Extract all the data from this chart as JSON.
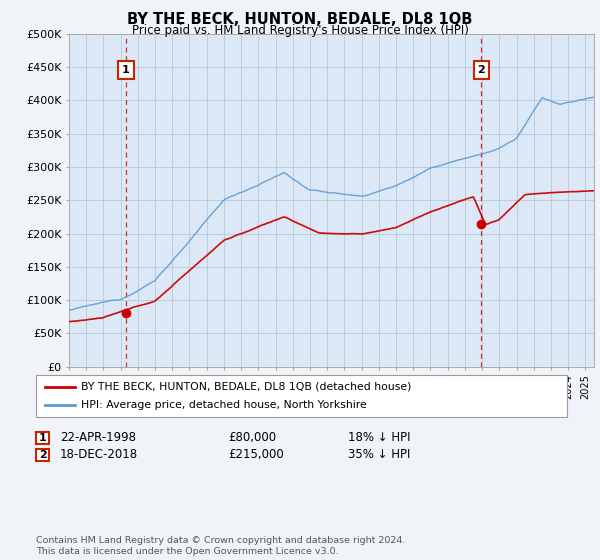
{
  "title": "BY THE BECK, HUNTON, BEDALE, DL8 1QB",
  "subtitle": "Price paid vs. HM Land Registry's House Price Index (HPI)",
  "ylabel_ticks": [
    "£0",
    "£50K",
    "£100K",
    "£150K",
    "£200K",
    "£250K",
    "£300K",
    "£350K",
    "£400K",
    "£450K",
    "£500K"
  ],
  "ytick_values": [
    0,
    50000,
    100000,
    150000,
    200000,
    250000,
    300000,
    350000,
    400000,
    450000,
    500000
  ],
  "ylim": [
    0,
    500000
  ],
  "xlim_start": 1995.0,
  "xlim_end": 2025.5,
  "hpi_color": "#5b9bd5",
  "price_color": "#cc0000",
  "marker1_date": 1998.31,
  "marker1_value": 80000,
  "marker2_date": 2018.96,
  "marker2_value": 215000,
  "vline_color": "#cc0000",
  "legend_label1": "BY THE BECK, HUNTON, BEDALE, DL8 1QB (detached house)",
  "legend_label2": "HPI: Average price, detached house, North Yorkshire",
  "annotation1_num": "1",
  "annotation1_date": "22-APR-1998",
  "annotation1_price": "£80,000",
  "annotation1_hpi": "18% ↓ HPI",
  "annotation2_num": "2",
  "annotation2_date": "18-DEC-2018",
  "annotation2_price": "£215,000",
  "annotation2_hpi": "35% ↓ HPI",
  "footer": "Contains HM Land Registry data © Crown copyright and database right 2024.\nThis data is licensed under the Open Government Licence v3.0.",
  "background_color": "#f0f4f8",
  "plot_bg_color": "#dce8f5",
  "grid_color": "#b8cfe0"
}
